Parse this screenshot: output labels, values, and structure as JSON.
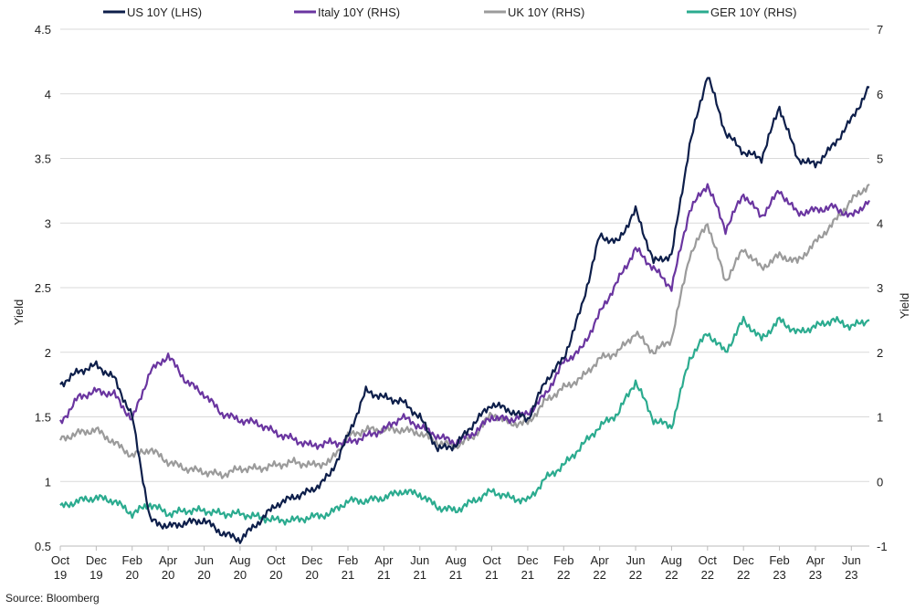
{
  "chart_data": {
    "type": "line",
    "source": "Source: Bloomberg",
    "ylabel_left": "Yield",
    "ylabel_right": "Yield",
    "ylim_left": [
      0.5,
      4.5
    ],
    "ylim_right": [
      -1,
      7
    ],
    "yticks_left": [
      "0.5",
      "1",
      "1.5",
      "2",
      "2.5",
      "3",
      "3.5",
      "4",
      "4.5"
    ],
    "yticks_right": [
      "-1",
      "0",
      "1",
      "2",
      "3",
      "4",
      "5",
      "6",
      "7"
    ],
    "xlim": [
      "Oct 2019",
      "Jul 2023"
    ],
    "xticks": [
      {
        "m": "Oct",
        "y": "19"
      },
      {
        "m": "Dec",
        "y": "19"
      },
      {
        "m": "Feb",
        "y": "20"
      },
      {
        "m": "Apr",
        "y": "20"
      },
      {
        "m": "Jun",
        "y": "20"
      },
      {
        "m": "Aug",
        "y": "20"
      },
      {
        "m": "Oct",
        "y": "20"
      },
      {
        "m": "Dec",
        "y": "20"
      },
      {
        "m": "Feb",
        "y": "21"
      },
      {
        "m": "Apr",
        "y": "21"
      },
      {
        "m": "Jun",
        "y": "21"
      },
      {
        "m": "Aug",
        "y": "21"
      },
      {
        "m": "Oct",
        "y": "21"
      },
      {
        "m": "Dec",
        "y": "21"
      },
      {
        "m": "Feb",
        "y": "22"
      },
      {
        "m": "Apr",
        "y": "22"
      },
      {
        "m": "Jun",
        "y": "22"
      },
      {
        "m": "Aug",
        "y": "22"
      },
      {
        "m": "Oct",
        "y": "22"
      },
      {
        "m": "Dec",
        "y": "22"
      },
      {
        "m": "Feb",
        "y": "23"
      },
      {
        "m": "Apr",
        "y": "23"
      },
      {
        "m": "Jun",
        "y": "23"
      }
    ],
    "grid": "horizontal",
    "legend": "top",
    "series": [
      {
        "name": "US 10Y (LHS)",
        "axis": "left",
        "color": "#0d1e4a",
        "x": [
          "Oct 2019",
          "Nov 2019",
          "Dec 2019",
          "Jan 2020",
          "Feb 2020",
          "Mar 2020",
          "Apr 2020",
          "May 2020",
          "Jun 2020",
          "Jul 2020",
          "Aug 2020",
          "Sep 2020",
          "Oct 2020",
          "Nov 2020",
          "Dec 2020",
          "Jan 2021",
          "Feb 2021",
          "Mar 2021",
          "Apr 2021",
          "May 2021",
          "Jun 2021",
          "Jul 2021",
          "Aug 2021",
          "Sep 2021",
          "Oct 2021",
          "Nov 2021",
          "Dec 2021",
          "Jan 2022",
          "Feb 2022",
          "Mar 2022",
          "Apr 2022",
          "May 2022",
          "Jun 2022",
          "Jul 2022",
          "Aug 2022",
          "Sep 2022",
          "Oct 2022",
          "Nov 2022",
          "Dec 2022",
          "Jan 2023",
          "Feb 2023",
          "Mar 2023",
          "Apr 2023",
          "May 2023",
          "Jun 2023",
          "Jul 2023"
        ],
        "values": [
          1.75,
          1.85,
          1.9,
          1.8,
          1.5,
          0.7,
          0.65,
          0.68,
          0.7,
          0.6,
          0.55,
          0.68,
          0.82,
          0.88,
          0.93,
          1.05,
          1.35,
          1.7,
          1.65,
          1.62,
          1.5,
          1.25,
          1.28,
          1.45,
          1.6,
          1.55,
          1.48,
          1.78,
          1.95,
          2.35,
          2.9,
          2.85,
          3.1,
          2.7,
          2.75,
          3.6,
          4.15,
          3.7,
          3.55,
          3.5,
          3.9,
          3.5,
          3.45,
          3.6,
          3.8,
          4.05
        ]
      },
      {
        "name": "Italy 10Y (RHS)",
        "axis": "right",
        "color": "#6a35a0",
        "x": [
          "Oct 2019",
          "Nov 2019",
          "Dec 2019",
          "Jan 2020",
          "Feb 2020",
          "Mar 2020",
          "Apr 2020",
          "May 2020",
          "Jun 2020",
          "Jul 2020",
          "Aug 2020",
          "Sep 2020",
          "Oct 2020",
          "Nov 2020",
          "Dec 2020",
          "Jan 2021",
          "Feb 2021",
          "Mar 2021",
          "Apr 2021",
          "May 2021",
          "Jun 2021",
          "Jul 2021",
          "Aug 2021",
          "Sep 2021",
          "Oct 2021",
          "Nov 2021",
          "Dec 2021",
          "Jan 2022",
          "Feb 2022",
          "Mar 2022",
          "Apr 2022",
          "May 2022",
          "Jun 2022",
          "Jul 2022",
          "Aug 2022",
          "Sep 2022",
          "Oct 2022",
          "Nov 2022",
          "Dec 2022",
          "Jan 2023",
          "Feb 2023",
          "Mar 2023",
          "Apr 2023",
          "May 2023",
          "Jun 2023",
          "Jul 2023"
        ],
        "values": [
          0.9,
          1.3,
          1.4,
          1.35,
          0.95,
          1.7,
          1.95,
          1.55,
          1.35,
          1.05,
          0.95,
          0.9,
          0.75,
          0.65,
          0.55,
          0.6,
          0.6,
          0.7,
          0.8,
          1.0,
          0.85,
          0.7,
          0.6,
          0.75,
          1.0,
          0.95,
          1.05,
          1.35,
          1.85,
          2.05,
          2.6,
          3.1,
          3.6,
          3.3,
          3.0,
          4.2,
          4.6,
          3.9,
          4.45,
          4.1,
          4.5,
          4.15,
          4.2,
          4.25,
          4.1,
          4.35
        ]
      },
      {
        "name": "UK 10Y (RHS)",
        "axis": "right",
        "color": "#9b9b9b",
        "x": [
          "Oct 2019",
          "Nov 2019",
          "Dec 2019",
          "Jan 2020",
          "Feb 2020",
          "Mar 2020",
          "Apr 2020",
          "May 2020",
          "Jun 2020",
          "Jul 2020",
          "Aug 2020",
          "Sep 2020",
          "Oct 2020",
          "Nov 2020",
          "Dec 2020",
          "Jan 2021",
          "Feb 2021",
          "Mar 2021",
          "Apr 2021",
          "May 2021",
          "Jun 2021",
          "Jul 2021",
          "Aug 2021",
          "Sep 2021",
          "Oct 2021",
          "Nov 2021",
          "Dec 2021",
          "Jan 2022",
          "Feb 2022",
          "Mar 2022",
          "Apr 2022",
          "May 2022",
          "Jun 2022",
          "Jul 2022",
          "Aug 2022",
          "Sep 2022",
          "Oct 2022",
          "Nov 2022",
          "Dec 2022",
          "Jan 2023",
          "Feb 2023",
          "Mar 2023",
          "Apr 2023",
          "May 2023",
          "Jun 2023",
          "Jul 2023"
        ],
        "values": [
          0.65,
          0.75,
          0.8,
          0.6,
          0.4,
          0.5,
          0.3,
          0.2,
          0.15,
          0.1,
          0.2,
          0.2,
          0.25,
          0.3,
          0.25,
          0.3,
          0.7,
          0.8,
          0.8,
          0.8,
          0.75,
          0.6,
          0.55,
          0.7,
          1.05,
          0.9,
          0.9,
          1.25,
          1.45,
          1.6,
          1.9,
          2.0,
          2.3,
          2.0,
          2.2,
          3.5,
          4.0,
          3.1,
          3.6,
          3.3,
          3.5,
          3.4,
          3.7,
          4.0,
          4.35,
          4.6
        ]
      },
      {
        "name": "GER 10Y (RHS)",
        "axis": "right",
        "color": "#2bab8f",
        "x": [
          "Oct 2019",
          "Nov 2019",
          "Dec 2019",
          "Jan 2020",
          "Feb 2020",
          "Mar 2020",
          "Apr 2020",
          "May 2020",
          "Jun 2020",
          "Jul 2020",
          "Aug 2020",
          "Sep 2020",
          "Oct 2020",
          "Nov 2020",
          "Dec 2020",
          "Jan 2021",
          "Feb 2021",
          "Mar 2021",
          "Apr 2021",
          "May 2021",
          "Jun 2021",
          "Jul 2021",
          "Aug 2021",
          "Sep 2021",
          "Oct 2021",
          "Nov 2021",
          "Dec 2021",
          "Jan 2022",
          "Feb 2022",
          "Mar 2022",
          "Apr 2022",
          "May 2022",
          "Jun 2022",
          "Jul 2022",
          "Aug 2022",
          "Sep 2022",
          "Oct 2022",
          "Nov 2022",
          "Dec 2022",
          "Jan 2023",
          "Feb 2023",
          "Mar 2023",
          "Apr 2023",
          "May 2023",
          "Jun 2023",
          "Jul 2023"
        ],
        "values": [
          -0.4,
          -0.3,
          -0.25,
          -0.3,
          -0.5,
          -0.35,
          -0.5,
          -0.45,
          -0.45,
          -0.5,
          -0.5,
          -0.55,
          -0.6,
          -0.6,
          -0.55,
          -0.5,
          -0.3,
          -0.3,
          -0.25,
          -0.15,
          -0.2,
          -0.4,
          -0.45,
          -0.3,
          -0.15,
          -0.25,
          -0.3,
          0.05,
          0.25,
          0.55,
          0.85,
          1.05,
          1.55,
          0.95,
          0.85,
          1.9,
          2.3,
          2.0,
          2.5,
          2.2,
          2.5,
          2.3,
          2.4,
          2.5,
          2.4,
          2.5
        ]
      }
    ]
  }
}
